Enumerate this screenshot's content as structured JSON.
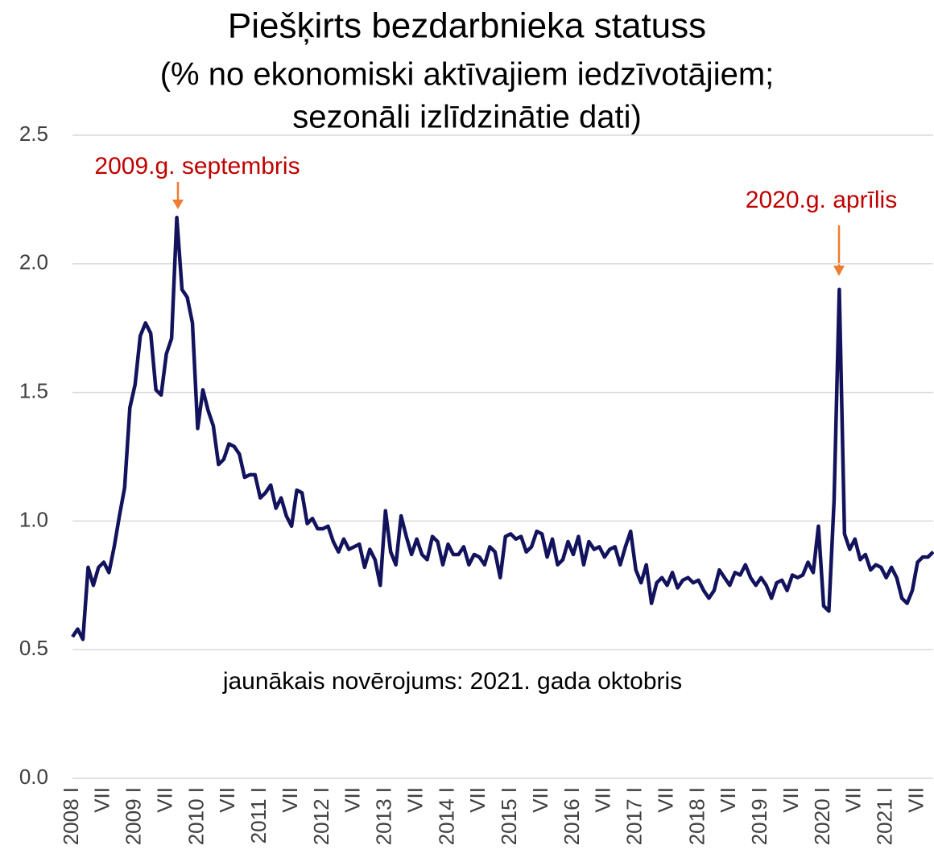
{
  "chart_data": {
    "type": "line",
    "title": "Piešķirts bezdarbnieka statuss",
    "subtitle": [
      "(% no ekonomiski aktīvajiem iedzīvotājiem;",
      "sezonāli izlīdzinātie dati)"
    ],
    "annotations": [
      "2009.g. septembris",
      "2020.g. aprīlis"
    ],
    "note": "jaunākais novērojums: 2021. gada oktobris",
    "categories": [
      "2008 I",
      null,
      null,
      null,
      null,
      null,
      "VII",
      null,
      null,
      null,
      null,
      null,
      "2009 I",
      null,
      null,
      null,
      null,
      null,
      "VII",
      null,
      null,
      null,
      null,
      null,
      "2010 I",
      null,
      null,
      null,
      null,
      null,
      "VII",
      null,
      null,
      null,
      null,
      null,
      "2011 I",
      null,
      null,
      null,
      null,
      null,
      "VII",
      null,
      null,
      null,
      null,
      null,
      "2012 I",
      null,
      null,
      null,
      null,
      null,
      "VII",
      null,
      null,
      null,
      null,
      null,
      "2013 I",
      null,
      null,
      null,
      null,
      null,
      "VII",
      null,
      null,
      null,
      null,
      null,
      "2014 I",
      null,
      null,
      null,
      null,
      null,
      "VII",
      null,
      null,
      null,
      null,
      null,
      "2015 I",
      null,
      null,
      null,
      null,
      null,
      "VII",
      null,
      null,
      null,
      null,
      null,
      "2016 I",
      null,
      null,
      null,
      null,
      null,
      "VII",
      null,
      null,
      null,
      null,
      null,
      "2017 I",
      null,
      null,
      null,
      null,
      null,
      "VII",
      null,
      null,
      null,
      null,
      null,
      "2018 I",
      null,
      null,
      null,
      null,
      null,
      "VII",
      null,
      null,
      null,
      null,
      null,
      "2019 I",
      null,
      null,
      null,
      null,
      null,
      "VII",
      null,
      null,
      null,
      null,
      null,
      "2020 I",
      null,
      null,
      null,
      null,
      null,
      "VII",
      null,
      null,
      null,
      null,
      null,
      "2021 I",
      null,
      null,
      null,
      null,
      null,
      "VII",
      null,
      null,
      null
    ],
    "values": [
      0.55,
      0.58,
      0.54,
      0.82,
      0.75,
      0.82,
      0.84,
      0.8,
      0.9,
      1.02,
      1.13,
      1.44,
      1.53,
      1.72,
      1.77,
      1.73,
      1.51,
      1.49,
      1.65,
      1.71,
      2.18,
      1.9,
      1.87,
      1.77,
      1.36,
      1.51,
      1.43,
      1.37,
      1.22,
      1.24,
      1.3,
      1.29,
      1.26,
      1.17,
      1.18,
      1.18,
      1.09,
      1.11,
      1.14,
      1.05,
      1.09,
      1.02,
      0.98,
      1.12,
      1.11,
      0.99,
      1.01,
      0.97,
      0.97,
      0.98,
      0.92,
      0.88,
      0.93,
      0.89,
      0.9,
      0.91,
      0.82,
      0.89,
      0.85,
      0.75,
      1.04,
      0.88,
      0.83,
      1.02,
      0.94,
      0.87,
      0.93,
      0.87,
      0.85,
      0.94,
      0.92,
      0.83,
      0.91,
      0.87,
      0.87,
      0.9,
      0.83,
      0.87,
      0.86,
      0.83,
      0.9,
      0.88,
      0.78,
      0.94,
      0.95,
      0.93,
      0.94,
      0.88,
      0.9,
      0.96,
      0.95,
      0.86,
      0.93,
      0.83,
      0.85,
      0.92,
      0.87,
      0.94,
      0.83,
      0.92,
      0.89,
      0.9,
      0.86,
      0.89,
      0.9,
      0.83,
      0.9,
      0.96,
      0.81,
      0.76,
      0.83,
      0.68,
      0.76,
      0.78,
      0.75,
      0.8,
      0.74,
      0.77,
      0.78,
      0.76,
      0.77,
      0.73,
      0.7,
      0.73,
      0.81,
      0.78,
      0.75,
      0.8,
      0.79,
      0.83,
      0.78,
      0.75,
      0.78,
      0.75,
      0.7,
      0.76,
      0.77,
      0.73,
      0.79,
      0.78,
      0.79,
      0.84,
      0.8,
      0.98,
      0.67,
      0.65,
      1.08,
      1.9,
      0.95,
      0.89,
      0.93,
      0.85,
      0.87,
      0.81,
      0.83,
      0.82,
      0.78,
      0.82,
      0.78,
      0.7,
      0.68,
      0.73,
      0.84,
      0.86,
      0.86,
      0.88
    ],
    "color": "#12135c",
    "ylim": [
      0,
      2.5
    ],
    "yticks": [
      {
        "value": 0,
        "label": "0.0"
      },
      0.5,
      {
        "value": 1,
        "label": "1.0"
      },
      1.5,
      {
        "value": 2,
        "label": "2.0"
      },
      2.5
    ],
    "grid": true
  }
}
